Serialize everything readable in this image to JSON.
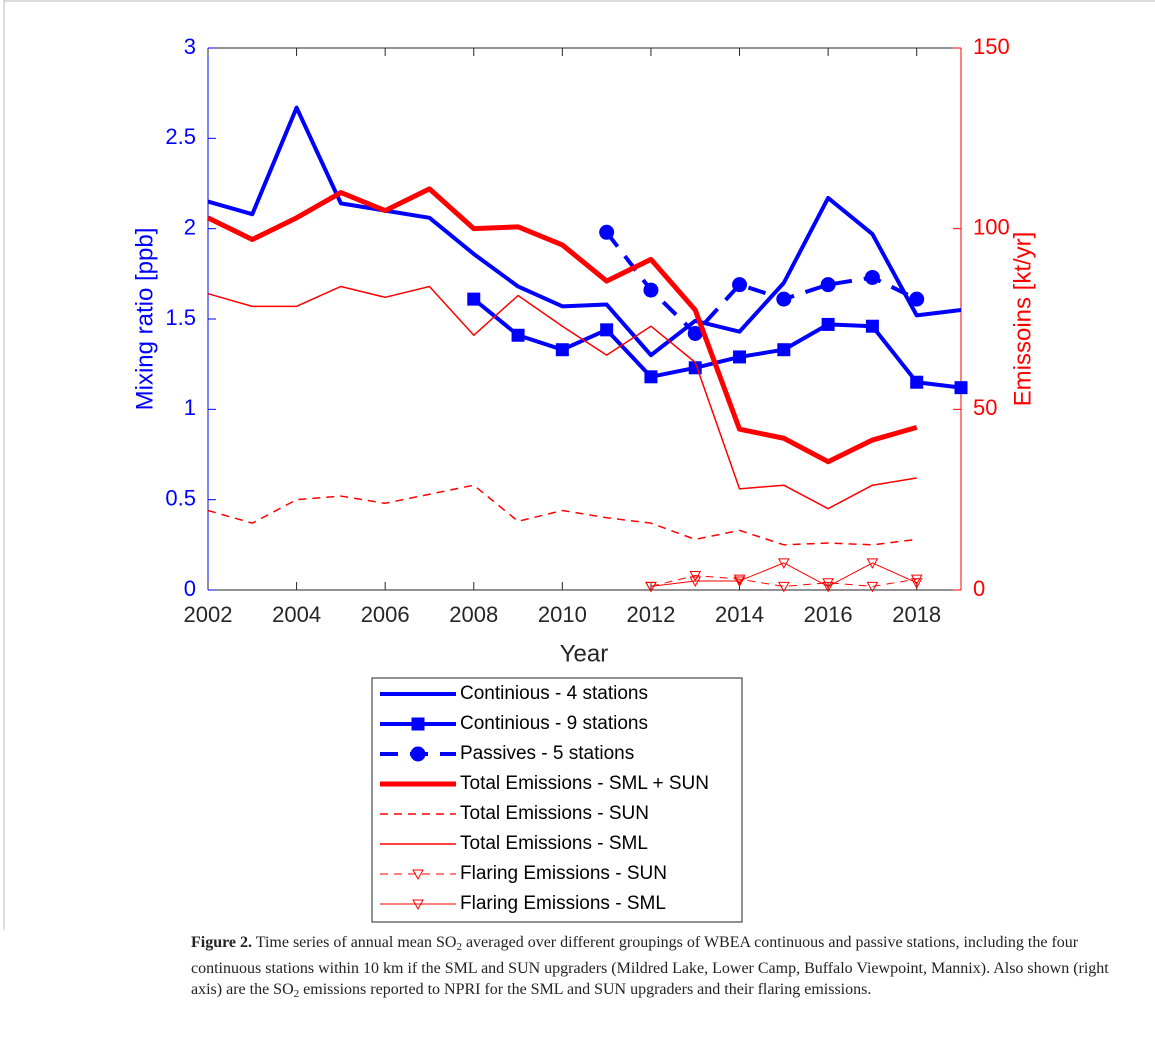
{
  "chart_data": {
    "type": "line",
    "x_label": "Year",
    "y_label": "Mixing ratio [ppb]",
    "y2_label": "Emissoins [kt/yr]",
    "x": [
      2002,
      2003,
      2004,
      2005,
      2006,
      2007,
      2008,
      2009,
      2010,
      2011,
      2012,
      2013,
      2014,
      2015,
      2016,
      2017,
      2018,
      2019
    ],
    "xlim": [
      2002,
      2019
    ],
    "xticks": [
      2002,
      2004,
      2006,
      2008,
      2010,
      2012,
      2014,
      2016,
      2018
    ],
    "ylim": [
      0,
      3
    ],
    "yticks": [
      0,
      0.5,
      1,
      1.5,
      2,
      2.5,
      3
    ],
    "y_color": "#0000ff",
    "y2lim": [
      0,
      150
    ],
    "y2ticks": [
      0,
      50,
      100,
      150
    ],
    "y2_color": "#ff0000",
    "series": [
      {
        "name": "Continious - 4 stations",
        "color": "#0000ff",
        "width": 4,
        "dash": "solid",
        "marker": "none",
        "values": [
          2.15,
          2.08,
          2.67,
          2.14,
          2.1,
          2.06,
          1.86,
          1.68,
          1.57,
          1.58,
          1.3,
          1.49,
          1.43,
          1.7,
          2.17,
          1.97,
          1.52,
          1.55
        ]
      },
      {
        "name": "Continious - 9 stations",
        "color": "#0000ff",
        "width": 4,
        "dash": "solid",
        "marker": "square",
        "values": [
          null,
          null,
          null,
          null,
          null,
          null,
          1.61,
          1.41,
          1.33,
          1.44,
          1.18,
          1.23,
          1.29,
          1.33,
          1.47,
          1.46,
          1.15,
          1.12
        ]
      },
      {
        "name": "Passives - 5 stations",
        "color": "#0000ff",
        "width": 4,
        "dash": "dashed",
        "marker": "circle",
        "values": [
          null,
          null,
          null,
          null,
          null,
          null,
          null,
          null,
          null,
          1.98,
          1.66,
          1.42,
          1.69,
          1.61,
          1.69,
          1.73,
          1.61,
          null
        ]
      },
      {
        "name": "Total Emissions - SML + SUN",
        "color": "#ff0000",
        "width": 5,
        "dash": "solid",
        "marker": "none",
        "axis": "y2",
        "values": [
          103,
          97,
          103,
          110,
          105,
          111,
          100,
          100.5,
          95.5,
          85.5,
          91.5,
          77.5,
          44.5,
          42,
          35.5,
          41.5,
          45,
          null
        ]
      },
      {
        "name": "Total Emissions - SUN",
        "color": "#ff0000",
        "width": 1.5,
        "dash": "dashed",
        "marker": "none",
        "axis": "y2",
        "values": [
          22,
          18.5,
          25,
          26,
          24,
          26.5,
          29,
          19,
          22,
          20,
          18.5,
          14,
          16.5,
          12.5,
          13,
          12.5,
          14,
          null
        ]
      },
      {
        "name": "Total Emissions - SML",
        "color": "#ff0000",
        "width": 1.5,
        "dash": "solid",
        "marker": "none",
        "axis": "y2",
        "values": [
          82,
          78.5,
          78.5,
          84,
          81,
          84,
          70.5,
          81.5,
          73,
          65,
          73,
          63,
          28,
          29,
          22.5,
          29,
          31,
          null
        ]
      },
      {
        "name": "Flaring Emissions - SUN",
        "color": "#ff0000",
        "width": 1,
        "dash": "dashed",
        "marker": "triangle-down",
        "axis": "y2",
        "values": [
          null,
          null,
          null,
          null,
          null,
          null,
          null,
          null,
          null,
          null,
          1,
          4,
          3,
          1,
          2,
          1,
          3,
          null
        ]
      },
      {
        "name": "Flaring Emissions - SML",
        "color": "#ff0000",
        "width": 1,
        "dash": "solid",
        "marker": "triangle-down",
        "axis": "y2",
        "values": [
          null,
          null,
          null,
          null,
          null,
          null,
          null,
          null,
          null,
          null,
          1,
          2.5,
          2.5,
          7.5,
          1,
          7.5,
          2,
          null
        ]
      }
    ]
  },
  "caption": {
    "label": "Figure 2.",
    "parts": [
      " Time series of annual mean SO",
      "2",
      " averaged over different groupings of WBEA continuous and passive stations, including the four continuous stations within 10 km if the SML and SUN upgraders (Mildred Lake, Lower Camp, Buffalo Viewpoint, Mannix). Also shown (right axis) are the SO",
      "2",
      " emissions reported to NPRI for the SML and SUN upgraders and their flaring emissions."
    ]
  }
}
